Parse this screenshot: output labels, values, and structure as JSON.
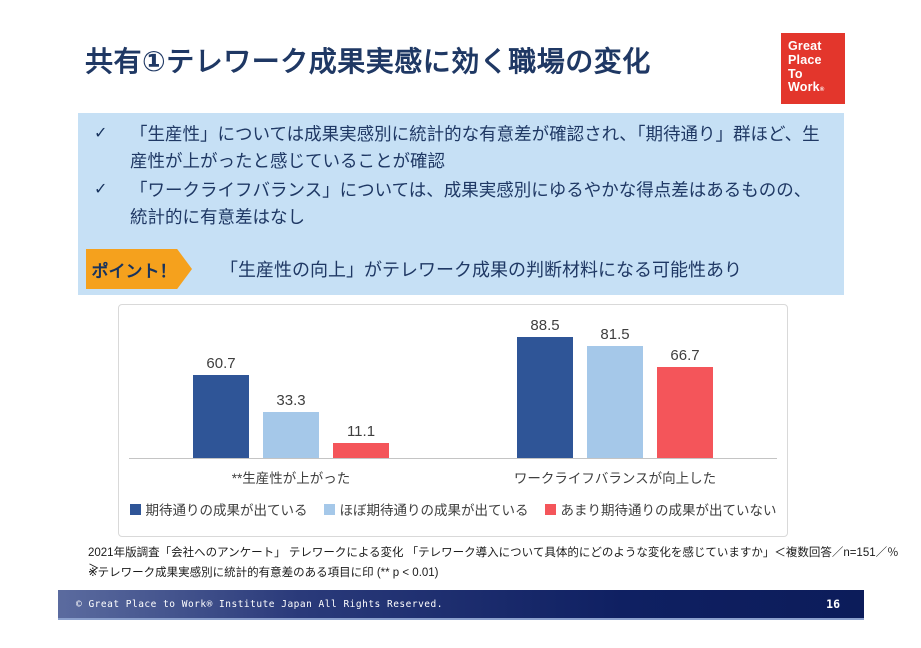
{
  "title": "共有①テレワーク成果実感に効く職場の変化",
  "logo": {
    "lines": [
      "Great",
      "Place",
      "To",
      "Work"
    ],
    "registered_mark": "®",
    "brand_color": "#e3362c"
  },
  "summary_box": {
    "bullet_glyph": "✓",
    "items": [
      "「生産性」については成果実感別に統計的な有意差が確認され、「期待通り」群ほど、生産性が上がったと感じていることが確認",
      "「ワークライフバランス」については、成果実感別にゆるやかな得点差はあるものの、統計的に有意差はなし"
    ],
    "point_label": "ポイント！",
    "point_text": "「生産性の向上」がテレワーク成果の判断材料になる可能性あり",
    "background_color": "#c6e0f5",
    "point_label_color": "#f5a11d",
    "text_color": "#1f3864"
  },
  "chart_data": {
    "type": "bar",
    "categories": [
      "**生産性が上がった",
      "ワークライフバランスが向上した"
    ],
    "series": [
      {
        "name": "期待通りの成果が出ている",
        "color": "#2f5597",
        "values": [
          60.7,
          88.5
        ]
      },
      {
        "name": "ほぼ期待通りの成果が出ている",
        "color": "#a5c8e9",
        "values": [
          33.3,
          81.5
        ]
      },
      {
        "name": "あまり期待通りの成果が出ていない",
        "color": "#f4555a",
        "values": [
          11.1,
          66.7
        ]
      }
    ],
    "ylim": [
      0,
      100
    ],
    "grid": false,
    "legend_position": "bottom",
    "value_labels": true,
    "title": "",
    "xlabel": "",
    "ylabel": ""
  },
  "footnotes": [
    "2021年版調査「会社へのアンケート」 テレワークによる変化 「テレワーク導入について具体的にどのような変化を感じていますか」＜複数回答／n=151／％＞",
    "※テレワーク成果実感別に統計的有意差のある項目に印 (** p < 0.01)"
  ],
  "footer": {
    "copyright": "© Great Place to Work® Institute Japan All Rights Reserved.",
    "page_number": "16"
  }
}
